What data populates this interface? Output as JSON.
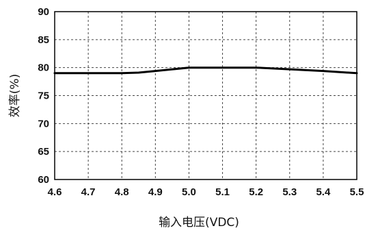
{
  "chart_data": {
    "type": "line",
    "title": "",
    "xlabel": "输入电压(VDC)",
    "ylabel": "效率(%)",
    "xlim": [
      4.6,
      5.5
    ],
    "ylim": [
      60,
      90
    ],
    "x_ticks": [
      "4.6",
      "4.7",
      "4.8",
      "4.9",
      "5.0",
      "5.1",
      "5.2",
      "5.3",
      "5.4",
      "5.5"
    ],
    "y_ticks": [
      "60",
      "65",
      "70",
      "75",
      "80",
      "85",
      "90"
    ],
    "grid": true,
    "legend": "none",
    "series": [
      {
        "color": "#000000",
        "x": [
          4.6,
          4.7,
          4.8,
          4.85,
          4.9,
          5.0,
          5.1,
          5.2,
          5.3,
          5.4,
          5.5
        ],
        "y": [
          79.0,
          79.0,
          79.0,
          79.1,
          79.4,
          80.0,
          80.0,
          80.0,
          79.7,
          79.4,
          79.0
        ]
      }
    ]
  }
}
